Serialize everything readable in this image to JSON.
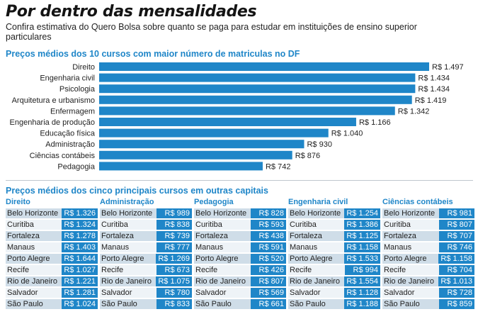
{
  "header": {
    "title": "Por dentro das mensalidades",
    "subtitle": "Confira estimativa do Quero Bolsa sobre quanto se paga para estudar em instituições de ensino superior particulares"
  },
  "colors": {
    "accent": "#1f86c8",
    "row_dark": "#cfdde8",
    "row_light": "#eef3f7"
  },
  "chart_data": [
    {
      "type": "bar",
      "orientation": "horizontal",
      "title": "Preços médios dos 10 cursos com maior número de matriculas no DF",
      "categories": [
        "Direito",
        "Engenharia civil",
        "Psicologia",
        "Arquitetura e urbanismo",
        "Enfermagem",
        "Engenharia de produção",
        "Educação física",
        "Administração",
        "Ciências contábeis",
        "Pedagogia"
      ],
      "values": [
        1497,
        1434,
        1434,
        1419,
        1342,
        1166,
        1040,
        930,
        876,
        742
      ],
      "value_labels": [
        "R$ 1.497",
        "R$ 1.434",
        "R$ 1.434",
        "R$ 1.419",
        "R$ 1.342",
        "R$ 1.166",
        "R$ 1.040",
        "R$ 930",
        "R$ 876",
        "R$ 742"
      ],
      "xlim": [
        0,
        1497
      ],
      "grid": false,
      "legend": "none"
    },
    {
      "type": "table",
      "title": "Preços médios dos cinco principais cursos em outras capitais",
      "tables": [
        {
          "course": "Direito",
          "rows": [
            {
              "city": "Belo Horizonte",
              "price": "R$ 1.326"
            },
            {
              "city": "Curitiba",
              "price": "R$ 1.324"
            },
            {
              "city": "Fortaleza",
              "price": "R$ 1.278"
            },
            {
              "city": "Manaus",
              "price": "R$ 1.403"
            },
            {
              "city": "Porto Alegre",
              "price": "R$ 1.644"
            },
            {
              "city": "Recife",
              "price": "R$ 1.027"
            },
            {
              "city": "Rio de Janeiro",
              "price": "R$ 1.221"
            },
            {
              "city": "Salvador",
              "price": "R$ 1.281"
            },
            {
              "city": "São Paulo",
              "price": "R$ 1.024"
            }
          ]
        },
        {
          "course": "Administração",
          "rows": [
            {
              "city": "Belo Horizonte",
              "price": "R$ 989"
            },
            {
              "city": "Curitiba",
              "price": "R$ 838"
            },
            {
              "city": "Fortaleza",
              "price": "R$ 739"
            },
            {
              "city": "Manaus",
              "price": "R$ 777"
            },
            {
              "city": "Porto Alegre",
              "price": "R$ 1.269"
            },
            {
              "city": "Recife",
              "price": "R$ 673"
            },
            {
              "city": "Rio de Janeiro",
              "price": "R$ 1.075"
            },
            {
              "city": "Salvador",
              "price": "R$ 780"
            },
            {
              "city": "São Paulo",
              "price": "R$ 833"
            }
          ]
        },
        {
          "course": "Pedagogia",
          "rows": [
            {
              "city": "Belo Horizonte",
              "price": "R$ 828"
            },
            {
              "city": "Curitiba",
              "price": "R$ 593"
            },
            {
              "city": "Fortaleza",
              "price": "R$ 438"
            },
            {
              "city": "Manaus",
              "price": "R$ 591"
            },
            {
              "city": "Porto Alegre",
              "price": "R$ 520"
            },
            {
              "city": "Recife",
              "price": "R$ 426"
            },
            {
              "city": "Rio de Janeiro",
              "price": "R$ 807"
            },
            {
              "city": "Salvador",
              "price": "R$ 569"
            },
            {
              "city": "São Paulo",
              "price": "R$ 661"
            }
          ]
        },
        {
          "course": "Engenharia civil",
          "rows": [
            {
              "city": "Belo Horizonte",
              "price": "R$ 1.254"
            },
            {
              "city": "Curitiba",
              "price": "R$ 1.386"
            },
            {
              "city": "Fortaleza",
              "price": "R$ 1.125"
            },
            {
              "city": "Manaus",
              "price": "R$ 1.158"
            },
            {
              "city": "Porto Alegre",
              "price": "R$ 1.533"
            },
            {
              "city": "Recife",
              "price": "R$ 994"
            },
            {
              "city": "Rio de Janeiro",
              "price": "R$ 1.554"
            },
            {
              "city": "Salvador",
              "price": "R$ 1.128"
            },
            {
              "city": "São Paulo",
              "price": "R$ 1.188"
            }
          ]
        },
        {
          "course": "Ciências contábeis",
          "rows": [
            {
              "city": "Belo Horizonte",
              "price": "R$ 981"
            },
            {
              "city": "Curitiba",
              "price": "R$ 807"
            },
            {
              "city": "Fortaleza",
              "price": "R$ 707"
            },
            {
              "city": "Manaus",
              "price": "R$ 746"
            },
            {
              "city": "Porto Alegre",
              "price": "R$ 1.158"
            },
            {
              "city": "Recife",
              "price": "R$ 704"
            },
            {
              "city": "Rio de Janeiro",
              "price": "R$ 1.013"
            },
            {
              "city": "Salvador",
              "price": "R$ 728"
            },
            {
              "city": "São Paulo",
              "price": "R$ 859"
            }
          ]
        }
      ]
    }
  ]
}
